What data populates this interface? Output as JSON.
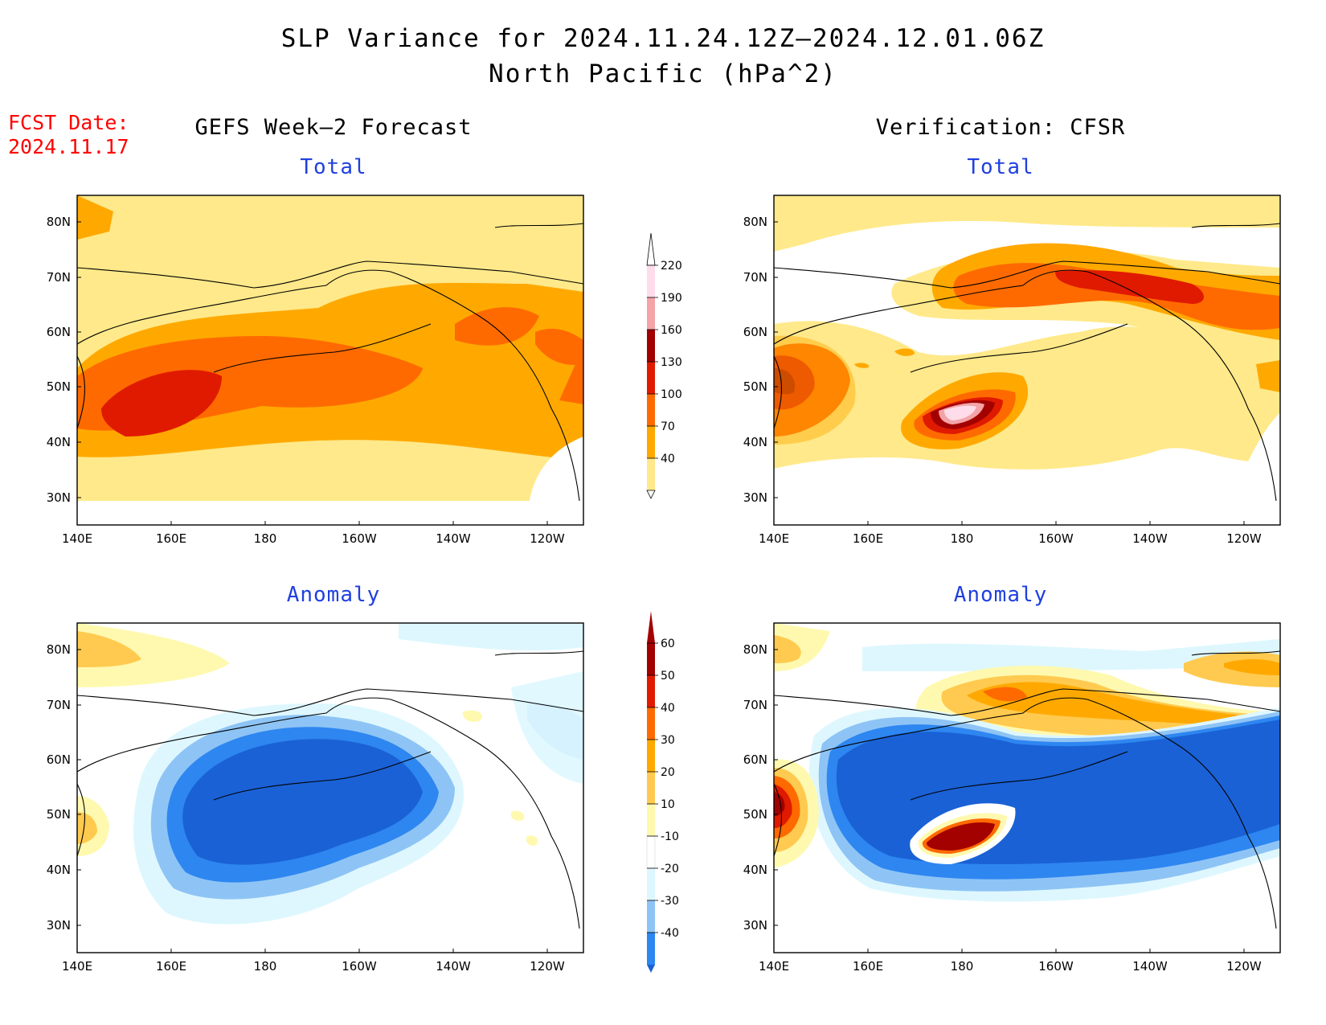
{
  "title": {
    "line1": "SLP Variance for 2024.11.24.12Z–2024.12.01.06Z",
    "line2": "North Pacific (hPa^2)"
  },
  "fcst_date": {
    "label": "FCST Date:",
    "value": "2024.11.17"
  },
  "headers": {
    "left": "GEFS Week–2 Forecast",
    "right": "Verification: CFSR"
  },
  "subtitles": {
    "top_left": "Total",
    "top_right": "Total",
    "bottom_left": "Anomaly",
    "bottom_right": "Anomaly"
  },
  "axes": {
    "lon_labels": [
      "140E",
      "160E",
      "180",
      "160W",
      "140W",
      "120W"
    ],
    "lat_labels": [
      "80N",
      "70N",
      "60N",
      "50N",
      "40N",
      "30N"
    ]
  },
  "colors": {
    "total_fill": [
      "#ffe98a",
      "#ffa900",
      "#ff6a00",
      "#e01a00",
      "#a30000",
      "#f4a4a8",
      "#ffdcea"
    ],
    "anomaly_neg": [
      "#1a61d6",
      "#2e86f0",
      "#8ec4f5",
      "#def7ff"
    ],
    "anomaly_pos": [
      "#fff9b0",
      "#ffca4f",
      "#ffa900",
      "#ff6a00",
      "#e01a00",
      "#a30000"
    ],
    "subtitle": "#1f3fe0",
    "fcst": "#ff0000"
  },
  "colorbar_total": {
    "labels": [
      "220",
      "190",
      "160",
      "130",
      "100",
      "70",
      "40"
    ]
  },
  "colorbar_anomaly": {
    "labels": [
      "60",
      "50",
      "40",
      "30",
      "20",
      "10",
      "-10",
      "-20",
      "-30",
      "-40"
    ]
  }
}
